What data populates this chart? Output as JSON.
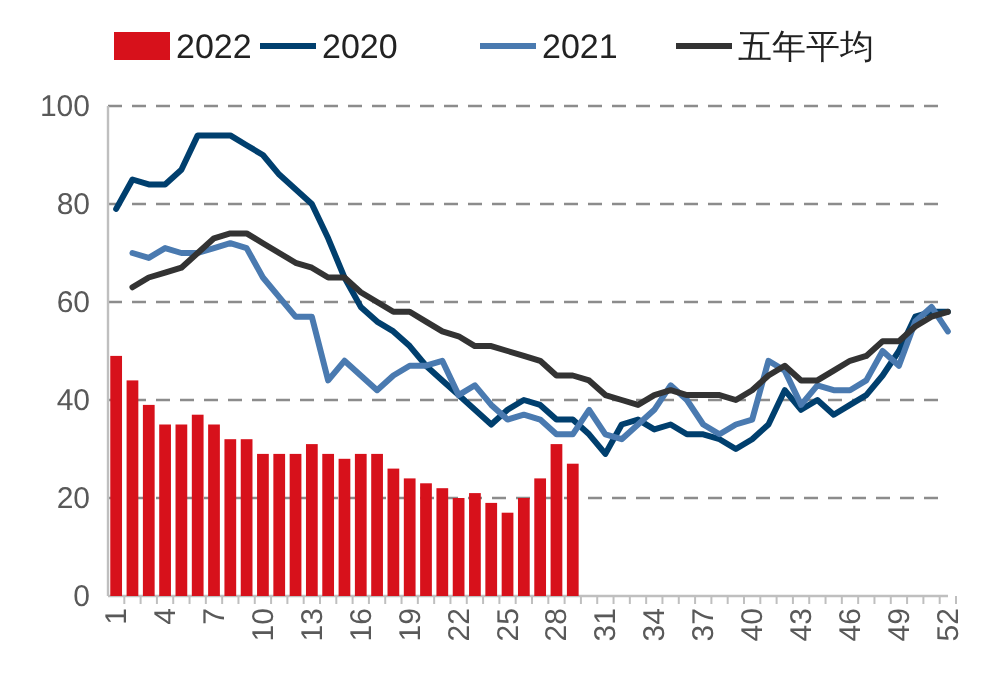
{
  "chart_data": {
    "type": "line",
    "categories": [
      "1",
      null,
      null,
      "4",
      null,
      null,
      "7",
      null,
      null,
      "10",
      null,
      null,
      "13",
      null,
      null,
      "16",
      null,
      null,
      "19",
      null,
      null,
      "22",
      null,
      null,
      "25",
      null,
      null,
      "28",
      null,
      null,
      "31",
      null,
      null,
      "34",
      null,
      null,
      "37",
      null,
      null,
      "40",
      null,
      null,
      "43",
      null,
      null,
      "46",
      null,
      null,
      "49",
      null,
      null,
      "52"
    ],
    "series": [
      {
        "name": "2022",
        "type": "bar",
        "color": "#d7111b",
        "values": [
          49,
          44,
          39,
          35,
          35,
          37,
          35,
          32,
          32,
          29,
          29,
          29,
          31,
          29,
          28,
          29,
          29,
          26,
          24,
          23,
          22,
          20,
          21,
          19,
          17,
          20,
          24,
          31,
          27,
          null,
          null,
          null,
          null,
          null,
          null,
          null,
          null,
          null,
          null,
          null,
          null,
          null,
          null,
          null,
          null,
          null,
          null,
          null,
          null,
          null,
          null,
          null
        ]
      },
      {
        "name": "2020",
        "color": "#003f6e",
        "values": [
          79,
          85,
          84,
          84,
          87,
          94,
          94,
          94,
          92,
          90,
          86,
          83,
          80,
          73,
          65,
          59,
          56,
          54,
          51,
          47,
          44,
          41,
          38,
          35,
          38,
          40,
          39,
          36,
          36,
          33,
          29,
          35,
          36,
          34,
          35,
          33,
          33,
          32,
          30,
          32,
          35,
          42,
          38,
          40,
          37,
          39,
          41,
          45,
          50,
          57,
          58,
          58
        ]
      },
      {
        "name": "2021",
        "color": "#4a7ab0",
        "values": [
          null,
          70,
          69,
          71,
          70,
          70,
          71,
          72,
          71,
          65,
          61,
          57,
          57,
          44,
          48,
          45,
          42,
          45,
          47,
          47,
          48,
          41,
          43,
          39,
          36,
          37,
          36,
          33,
          33,
          38,
          33,
          32,
          35,
          38,
          43,
          40,
          35,
          33,
          35,
          36,
          48,
          46,
          39,
          43,
          42,
          42,
          44,
          50,
          47,
          56,
          59,
          54
        ]
      },
      {
        "name": "五年平均",
        "color": "#333333",
        "values": [
          null,
          63,
          65,
          66,
          67,
          70,
          73,
          74,
          74,
          72,
          70,
          68,
          67,
          65,
          65,
          62,
          60,
          58,
          58,
          56,
          54,
          53,
          51,
          51,
          50,
          49,
          48,
          45,
          45,
          44,
          41,
          40,
          39,
          41,
          42,
          41,
          41,
          41,
          40,
          42,
          45,
          47,
          44,
          44,
          46,
          48,
          49,
          52,
          52,
          55,
          57,
          58
        ]
      }
    ],
    "ylim": [
      0,
      100
    ],
    "yticks": [
      0,
      20,
      40,
      60,
      80,
      100
    ],
    "grid": "y",
    "legend": "top",
    "marker": "none",
    "line_style": "solid"
  }
}
